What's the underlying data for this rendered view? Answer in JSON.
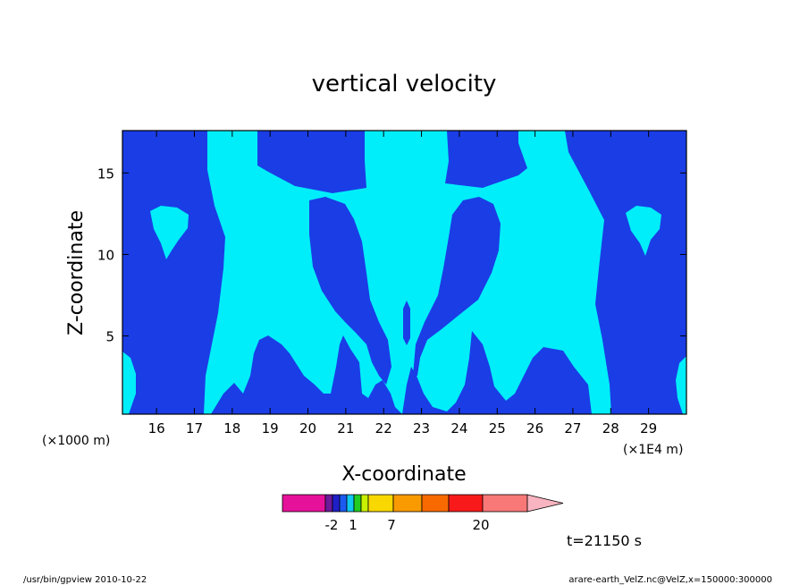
{
  "chart_data": {
    "type": "contour",
    "title": "vertical velocity",
    "xlabel": "X-coordinate",
    "ylabel": "Z-coordinate",
    "x_unit_left": "(×1000 m)",
    "x_unit_right": "(×1E4 m)",
    "xlim": [
      15.1,
      30
    ],
    "ylim": [
      0.2,
      17.6
    ],
    "x_ticks": [
      "16",
      "17",
      "18",
      "19",
      "20",
      "21",
      "22",
      "23",
      "24",
      "25",
      "26",
      "27",
      "28",
      "29"
    ],
    "y_ticks": [
      "5",
      "10",
      "15"
    ],
    "colors": {
      "region_low": "#1a3de6",
      "region_mid": "#00eefa"
    },
    "colorbar": {
      "colors": [
        "#e6119a",
        "#6a1a9a",
        "#1f1fc8",
        "#1a5af0",
        "#10c8f0",
        "#22cc22",
        "#c8f000",
        "#f8d800",
        "#f89a00",
        "#f86a00",
        "#f81a1a",
        "#f87878",
        "#f8b4c0"
      ],
      "tick_labels": [
        "-2",
        "1",
        "7",
        "20"
      ]
    },
    "time_label": "t=21150 s"
  },
  "footer": {
    "left": "/usr/bin/gpview   2010-10-22",
    "right": "arare-earth_VelZ.nc@VelZ,x=150000:300000"
  }
}
